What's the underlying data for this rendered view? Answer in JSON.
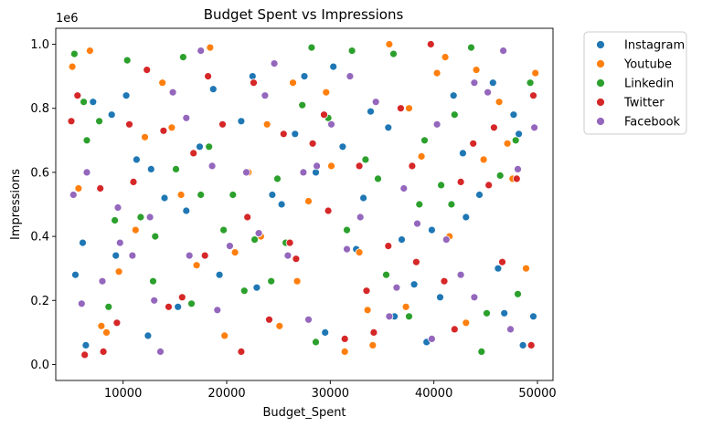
{
  "chart_data": {
    "type": "scatter",
    "title": "Budget Spent vs Impressions",
    "xlabel": "Budget_Spent",
    "ylabel": "Impressions",
    "y_offset_text": "1e6",
    "xlim": [
      3500,
      51500
    ],
    "ylim": [
      -50000,
      1050000
    ],
    "xticks": [
      10000,
      20000,
      30000,
      40000,
      50000
    ],
    "xtick_labels": [
      "10000",
      "20000",
      "30000",
      "40000",
      "50000"
    ],
    "yticks": [
      0,
      200000,
      400000,
      600000,
      800000,
      1000000
    ],
    "ytick_labels": [
      "0.0",
      "0.2",
      "0.4",
      "0.6",
      "0.8",
      "1.0"
    ],
    "grid": false,
    "legend_position": "outside-upper-right",
    "series": [
      {
        "name": "Instagram",
        "color": "#1f77b4",
        "points": [
          [
            5400,
            280000
          ],
          [
            6100,
            380000
          ],
          [
            7100,
            820000
          ],
          [
            8900,
            780000
          ],
          [
            10300,
            840000
          ],
          [
            11300,
            640000
          ],
          [
            12700,
            610000
          ],
          [
            14000,
            520000
          ],
          [
            16100,
            480000
          ],
          [
            17400,
            680000
          ],
          [
            19300,
            280000
          ],
          [
            21400,
            760000
          ],
          [
            22500,
            900000
          ],
          [
            24400,
            530000
          ],
          [
            25300,
            500000
          ],
          [
            27500,
            900000
          ],
          [
            28600,
            600000
          ],
          [
            29500,
            100000
          ],
          [
            31200,
            680000
          ],
          [
            32500,
            360000
          ],
          [
            33900,
            790000
          ],
          [
            35600,
            740000
          ],
          [
            36900,
            390000
          ],
          [
            38100,
            250000
          ],
          [
            39300,
            70000
          ],
          [
            40600,
            210000
          ],
          [
            41900,
            840000
          ],
          [
            43100,
            460000
          ],
          [
            44400,
            530000
          ],
          [
            45700,
            880000
          ],
          [
            46800,
            160000
          ],
          [
            47700,
            780000
          ],
          [
            48600,
            60000
          ],
          [
            49600,
            150000
          ],
          [
            6400,
            60000
          ],
          [
            9300,
            340000
          ],
          [
            12400,
            90000
          ],
          [
            15300,
            180000
          ],
          [
            18700,
            860000
          ],
          [
            22900,
            240000
          ],
          [
            26600,
            720000
          ],
          [
            30300,
            930000
          ],
          [
            33200,
            520000
          ],
          [
            36200,
            150000
          ],
          [
            39800,
            420000
          ],
          [
            42800,
            660000
          ],
          [
            46200,
            300000
          ],
          [
            48200,
            720000
          ]
        ]
      },
      {
        "name": "Youtube",
        "color": "#ff7f0e",
        "points": [
          [
            5100,
            930000
          ],
          [
            6800,
            980000
          ],
          [
            7900,
            120000
          ],
          [
            9600,
            290000
          ],
          [
            12100,
            710000
          ],
          [
            13800,
            880000
          ],
          [
            15600,
            530000
          ],
          [
            18400,
            990000
          ],
          [
            20800,
            350000
          ],
          [
            22100,
            600000
          ],
          [
            23900,
            750000
          ],
          [
            25100,
            120000
          ],
          [
            26400,
            880000
          ],
          [
            27900,
            510000
          ],
          [
            29600,
            850000
          ],
          [
            31400,
            40000
          ],
          [
            32800,
            350000
          ],
          [
            34100,
            60000
          ],
          [
            35700,
            1000000
          ],
          [
            37300,
            180000
          ],
          [
            38800,
            650000
          ],
          [
            40300,
            910000
          ],
          [
            41500,
            400000
          ],
          [
            43100,
            130000
          ],
          [
            44800,
            640000
          ],
          [
            46300,
            820000
          ],
          [
            47600,
            580000
          ],
          [
            48900,
            300000
          ],
          [
            5700,
            550000
          ],
          [
            8400,
            100000
          ],
          [
            11200,
            420000
          ],
          [
            14700,
            740000
          ],
          [
            17100,
            310000
          ],
          [
            19800,
            90000
          ],
          [
            23300,
            400000
          ],
          [
            26800,
            260000
          ],
          [
            30100,
            620000
          ],
          [
            33600,
            170000
          ],
          [
            37600,
            800000
          ],
          [
            41100,
            960000
          ],
          [
            44100,
            920000
          ],
          [
            47100,
            690000
          ],
          [
            49800,
            910000
          ]
        ]
      },
      {
        "name": "Linkedin",
        "color": "#2ca02c",
        "points": [
          [
            5300,
            970000
          ],
          [
            6500,
            700000
          ],
          [
            7700,
            760000
          ],
          [
            9200,
            450000
          ],
          [
            11700,
            460000
          ],
          [
            13100,
            400000
          ],
          [
            15100,
            610000
          ],
          [
            16600,
            190000
          ],
          [
            18300,
            680000
          ],
          [
            19700,
            420000
          ],
          [
            21700,
            230000
          ],
          [
            22700,
            390000
          ],
          [
            24300,
            260000
          ],
          [
            25700,
            380000
          ],
          [
            27300,
            810000
          ],
          [
            28200,
            990000
          ],
          [
            29800,
            770000
          ],
          [
            31600,
            420000
          ],
          [
            33400,
            640000
          ],
          [
            34600,
            580000
          ],
          [
            36100,
            970000
          ],
          [
            37600,
            150000
          ],
          [
            39100,
            700000
          ],
          [
            40700,
            560000
          ],
          [
            42000,
            780000
          ],
          [
            43600,
            990000
          ],
          [
            45100,
            160000
          ],
          [
            46400,
            590000
          ],
          [
            47900,
            700000
          ],
          [
            49300,
            880000
          ],
          [
            6200,
            820000
          ],
          [
            8600,
            180000
          ],
          [
            10400,
            950000
          ],
          [
            12900,
            260000
          ],
          [
            15800,
            960000
          ],
          [
            17500,
            530000
          ],
          [
            20600,
            530000
          ],
          [
            24900,
            580000
          ],
          [
            28600,
            70000
          ],
          [
            32100,
            980000
          ],
          [
            35400,
            280000
          ],
          [
            38600,
            500000
          ],
          [
            41700,
            500000
          ],
          [
            44600,
            40000
          ],
          [
            48100,
            220000
          ]
        ]
      },
      {
        "name": "Twitter",
        "color": "#d62728",
        "points": [
          [
            5000,
            760000
          ],
          [
            6300,
            30000
          ],
          [
            7800,
            550000
          ],
          [
            9400,
            130000
          ],
          [
            10600,
            750000
          ],
          [
            12300,
            920000
          ],
          [
            13900,
            730000
          ],
          [
            15700,
            210000
          ],
          [
            16800,
            660000
          ],
          [
            18200,
            900000
          ],
          [
            19600,
            750000
          ],
          [
            21400,
            40000
          ],
          [
            22600,
            880000
          ],
          [
            24100,
            140000
          ],
          [
            25500,
            720000
          ],
          [
            26700,
            330000
          ],
          [
            28300,
            690000
          ],
          [
            29800,
            480000
          ],
          [
            31400,
            80000
          ],
          [
            32800,
            620000
          ],
          [
            34200,
            100000
          ],
          [
            35600,
            370000
          ],
          [
            36800,
            800000
          ],
          [
            38300,
            320000
          ],
          [
            39700,
            1000000
          ],
          [
            41000,
            260000
          ],
          [
            42600,
            570000
          ],
          [
            43800,
            690000
          ],
          [
            45300,
            560000
          ],
          [
            46600,
            320000
          ],
          [
            48000,
            580000
          ],
          [
            49400,
            60000
          ],
          [
            5600,
            840000
          ],
          [
            8100,
            40000
          ],
          [
            11000,
            570000
          ],
          [
            14400,
            180000
          ],
          [
            17900,
            340000
          ],
          [
            22000,
            460000
          ],
          [
            26100,
            380000
          ],
          [
            29400,
            780000
          ],
          [
            33500,
            230000
          ],
          [
            37900,
            620000
          ],
          [
            42000,
            110000
          ],
          [
            45800,
            740000
          ],
          [
            49600,
            840000
          ]
        ]
      },
      {
        "name": "Facebook",
        "color": "#9467bd",
        "points": [
          [
            5200,
            530000
          ],
          [
            6500,
            600000
          ],
          [
            8000,
            260000
          ],
          [
            9500,
            490000
          ],
          [
            10900,
            340000
          ],
          [
            12600,
            460000
          ],
          [
            13600,
            40000
          ],
          [
            14800,
            850000
          ],
          [
            16400,
            340000
          ],
          [
            17500,
            980000
          ],
          [
            18600,
            620000
          ],
          [
            20300,
            370000
          ],
          [
            21900,
            600000
          ],
          [
            23100,
            410000
          ],
          [
            24600,
            940000
          ],
          [
            25900,
            340000
          ],
          [
            27400,
            600000
          ],
          [
            28700,
            620000
          ],
          [
            30100,
            750000
          ],
          [
            31600,
            360000
          ],
          [
            32900,
            460000
          ],
          [
            34400,
            820000
          ],
          [
            35700,
            150000
          ],
          [
            37100,
            550000
          ],
          [
            38400,
            440000
          ],
          [
            39800,
            80000
          ],
          [
            41200,
            390000
          ],
          [
            42600,
            280000
          ],
          [
            43900,
            880000
          ],
          [
            45200,
            850000
          ],
          [
            46700,
            980000
          ],
          [
            48100,
            610000
          ],
          [
            49700,
            740000
          ],
          [
            6000,
            190000
          ],
          [
            9700,
            380000
          ],
          [
            13000,
            200000
          ],
          [
            16100,
            770000
          ],
          [
            19100,
            170000
          ],
          [
            23700,
            840000
          ],
          [
            27900,
            140000
          ],
          [
            31900,
            900000
          ],
          [
            36400,
            240000
          ],
          [
            40300,
            750000
          ],
          [
            43900,
            210000
          ],
          [
            47400,
            110000
          ]
        ]
      }
    ]
  }
}
